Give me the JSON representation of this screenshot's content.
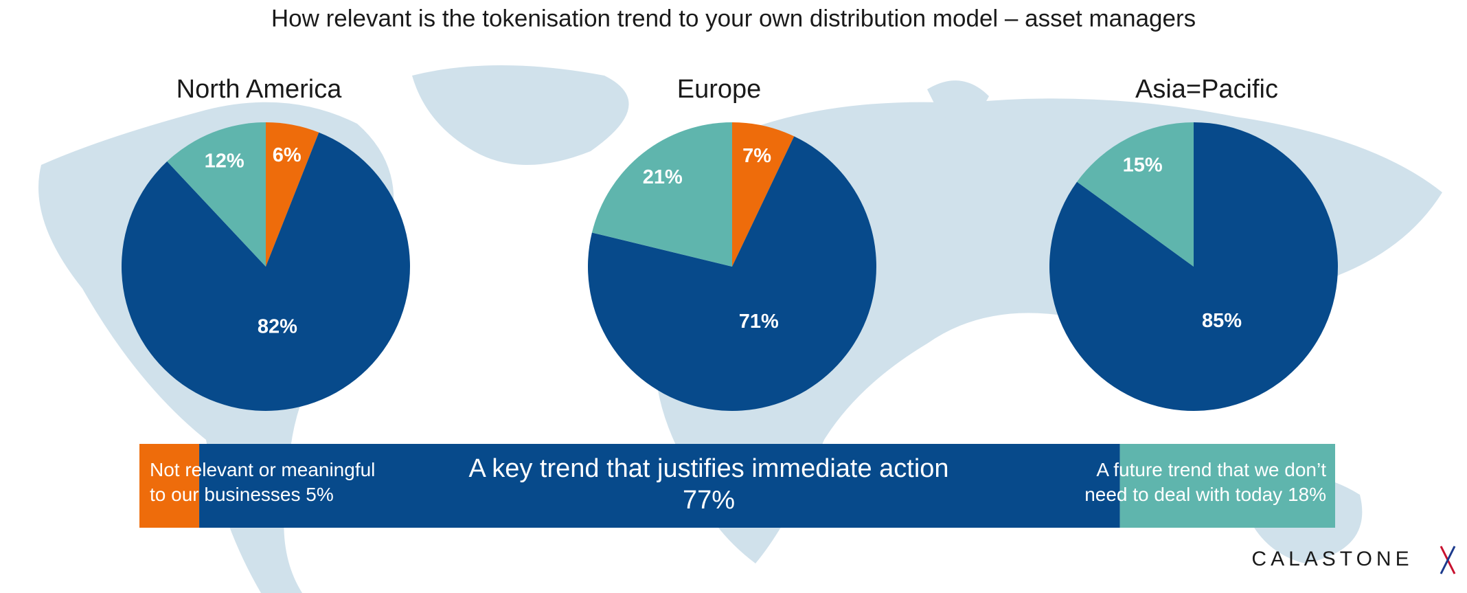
{
  "title": "How relevant is the tokenisation trend to your own distribution model – asset managers",
  "logo": "CALASTONE",
  "chart_data": [
    {
      "type": "pie",
      "title": "North America",
      "values": [
        6,
        82,
        12
      ],
      "value_labels": [
        "6%",
        "82%",
        "12%"
      ],
      "colors": [
        "#ee6c0b",
        "#074a8b",
        "#5fb5ad"
      ]
    },
    {
      "type": "pie",
      "title": "Europe",
      "values": [
        7,
        71,
        21
      ],
      "value_labels": [
        "7%",
        "71%",
        "21%"
      ],
      "colors": [
        "#ee6c0b",
        "#074a8b",
        "#5fb5ad"
      ]
    },
    {
      "type": "pie",
      "title": "Asia=Pacific",
      "values": [
        85,
        15
      ],
      "value_labels": [
        "85%",
        "15%"
      ],
      "colors": [
        "#074a8b",
        "#5fb5ad"
      ]
    },
    {
      "type": "stacked_bar",
      "categories": [
        "Not relevant or meaningful to our businesses",
        "A key trend that justifies immediate action",
        "A future trend that we don’t need to deal with today"
      ],
      "values": [
        5,
        77,
        18
      ],
      "value_labels": [
        "5%",
        "77%",
        "18%"
      ],
      "colors": [
        "#ee6c0b",
        "#074a8b",
        "#5fb5ad"
      ]
    }
  ]
}
